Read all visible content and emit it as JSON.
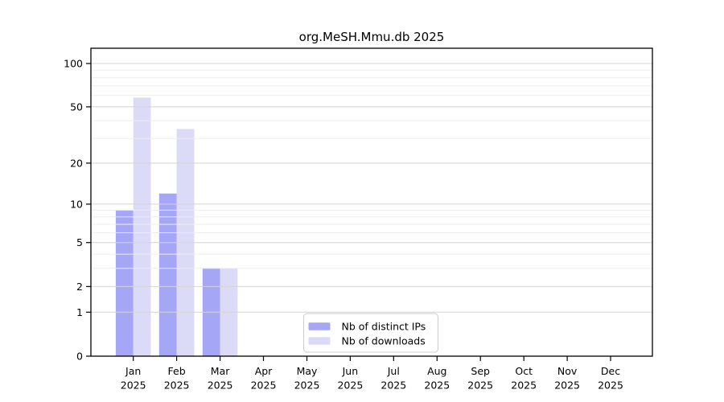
{
  "chart_data": {
    "type": "bar",
    "title": "org.MeSH.Mmu.db 2025",
    "year_label": "2025",
    "categories": [
      "Jan",
      "Feb",
      "Mar",
      "Apr",
      "May",
      "Jun",
      "Jul",
      "Aug",
      "Sep",
      "Oct",
      "Nov",
      "Dec"
    ],
    "series": [
      {
        "name": "Nb of distinct IPs",
        "color": "#a6a6f6",
        "values": [
          9,
          12,
          3,
          0,
          0,
          0,
          0,
          0,
          0,
          0,
          0,
          0
        ]
      },
      {
        "name": "Nb of downloads",
        "color": "#dbdbf8",
        "values": [
          58,
          35,
          3,
          0,
          0,
          0,
          0,
          0,
          0,
          0,
          0,
          0
        ]
      }
    ],
    "y_axis": {
      "scale": "log1p",
      "major_ticks": [
        0,
        1,
        2,
        5,
        10,
        20,
        50,
        100
      ],
      "minor_gridlines": [
        3,
        4,
        6,
        7,
        8,
        9,
        30,
        40,
        60,
        70,
        80,
        90
      ],
      "max": 128
    },
    "xlabel": "",
    "ylabel": "",
    "grid": "on",
    "legend": {
      "position": "bottom-center",
      "entries": [
        "Nb of distinct IPs",
        "Nb of downloads"
      ]
    },
    "colors": {
      "major_grid": "#d4d4d4",
      "minor_grid": "#ededed",
      "axis": "#000000",
      "background": "#ffffff",
      "legend_border": "#cccccc"
    }
  }
}
